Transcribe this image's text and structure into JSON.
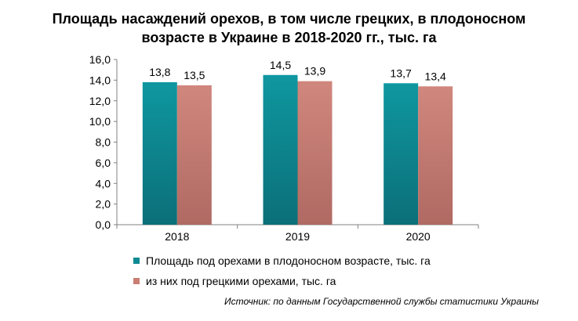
{
  "title_line1": "Площадь насаждений орехов, в том числе грецких, в плодоносном",
  "title_line2": "возрасте в Украине в 2018-2020 гг., тыс. га",
  "source": "Источник: по данным Государственной службы статистики Украины",
  "chart_data": {
    "type": "bar",
    "categories": [
      "2018",
      "2019",
      "2020"
    ],
    "series": [
      {
        "name": "Площадь под орехами в плодоносном возрасте, тыс. га",
        "values": [
          13.8,
          14.5,
          13.7
        ],
        "labels": [
          "13,8",
          "14,5",
          "13,7"
        ],
        "color": "#0e8a93"
      },
      {
        "name": "из них под грецкими орехами, тыс. га",
        "values": [
          13.5,
          13.9,
          13.4
        ],
        "labels": [
          "13,5",
          "13,9",
          "13,4"
        ],
        "color": "#c97e74"
      }
    ],
    "ylim": [
      0,
      16
    ],
    "yticks": [
      0,
      2,
      4,
      6,
      8,
      10,
      12,
      14,
      16
    ],
    "ytick_labels": [
      "0,0",
      "2,0",
      "4,0",
      "6,0",
      "8,0",
      "10,0",
      "12,0",
      "14,0",
      "16,0"
    ],
    "grid": false,
    "legend_position": "bottom"
  }
}
